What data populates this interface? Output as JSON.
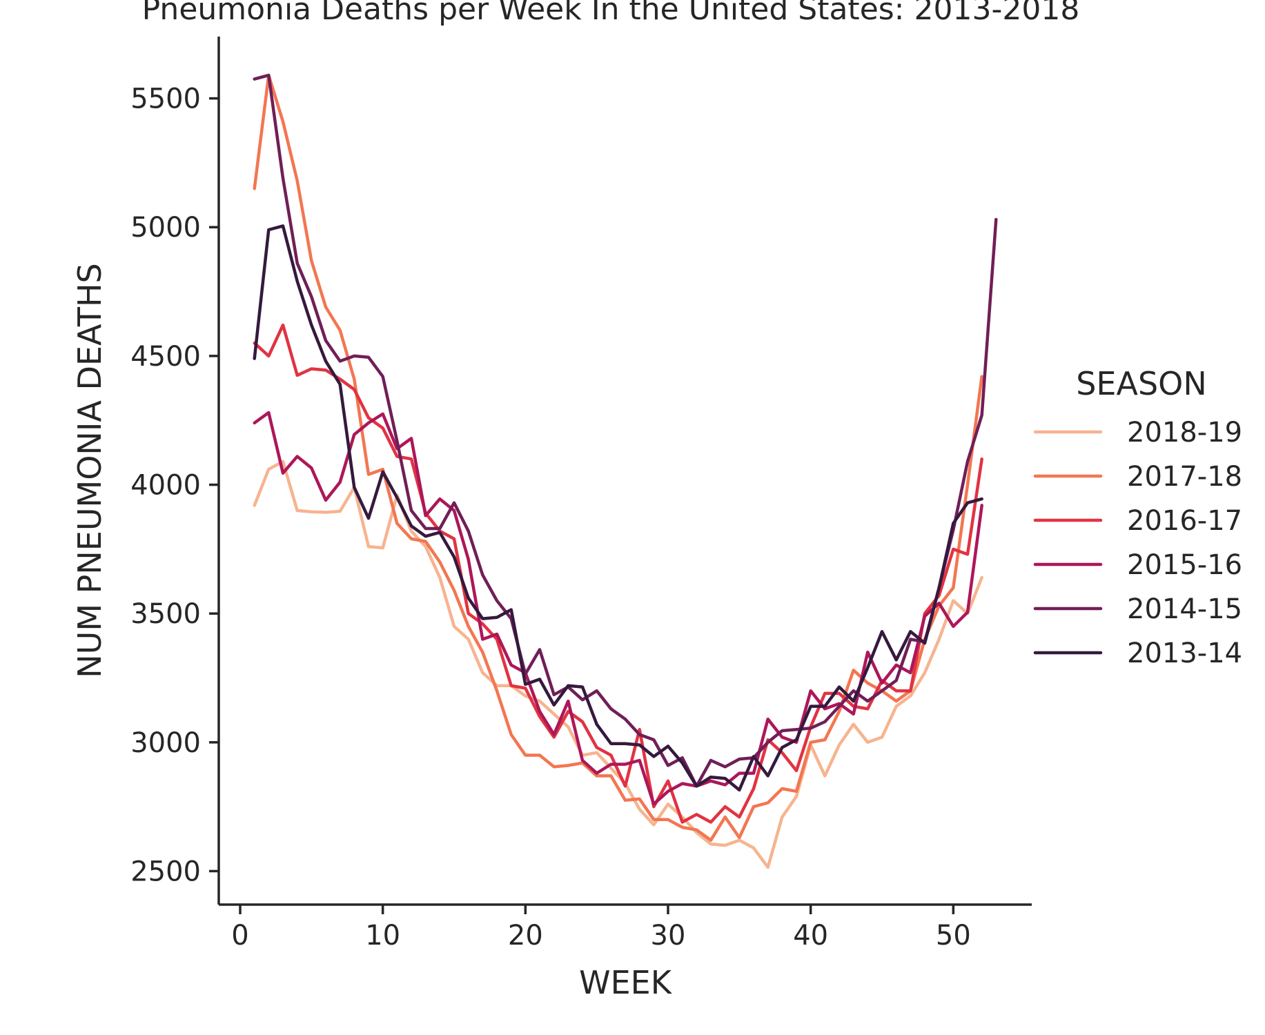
{
  "chart_data": {
    "type": "line",
    "title": "Pneumonia Deaths per Week In the United States: 2013-2018",
    "xlabel": "WEEK",
    "ylabel": "NUM PNEUMONIA DEATHS",
    "xlim": [
      -1.5,
      55.5
    ],
    "ylim": [
      2370,
      5740
    ],
    "xticks": [
      0,
      10,
      20,
      30,
      40,
      50
    ],
    "yticks": [
      2500,
      3000,
      3500,
      4000,
      4500,
      5000,
      5500
    ],
    "grid": false,
    "legend": {
      "title": "SEASON",
      "position": "right"
    },
    "series": [
      {
        "name": "2018-19",
        "color": "#f6b48f",
        "x": [
          1,
          2,
          3,
          4,
          5,
          6,
          7,
          8,
          9,
          10,
          11,
          12,
          13,
          14,
          15,
          16,
          17,
          18,
          19,
          20,
          21,
          22,
          23,
          24,
          25,
          26,
          27,
          28,
          29,
          30,
          31,
          32,
          33,
          34,
          35,
          36,
          37,
          38,
          39,
          40,
          41,
          42,
          43,
          44,
          45,
          46,
          47,
          48,
          49,
          50,
          51,
          52
        ],
        "y": [
          3920,
          4060,
          4090,
          3900,
          3895,
          3893,
          3897,
          3990,
          3760,
          3755,
          3960,
          3820,
          3760,
          3640,
          3450,
          3400,
          3270,
          3220,
          3220,
          3180,
          3160,
          3110,
          3060,
          2950,
          2960,
          2900,
          2840,
          2740,
          2680,
          2760,
          2710,
          2650,
          2605,
          2600,
          2620,
          2590,
          2515,
          2710,
          2790,
          2990,
          2870,
          2990,
          3070,
          3000,
          3020,
          3140,
          3180,
          3270,
          3400,
          3550,
          3500,
          3640
        ]
      },
      {
        "name": "2017-18",
        "color": "#f37651",
        "x": [
          1,
          2,
          3,
          4,
          5,
          6,
          7,
          8,
          9,
          10,
          11,
          12,
          13,
          14,
          15,
          16,
          17,
          18,
          19,
          20,
          21,
          22,
          23,
          24,
          25,
          26,
          27,
          28,
          29,
          30,
          31,
          32,
          33,
          34,
          35,
          36,
          37,
          38,
          39,
          40,
          41,
          42,
          43,
          44,
          45,
          46,
          47,
          48,
          49,
          50,
          51,
          52
        ],
        "y": [
          5150,
          5590,
          5410,
          5180,
          4870,
          4690,
          4600,
          4410,
          4040,
          4060,
          3850,
          3790,
          3780,
          3700,
          3590,
          3450,
          3350,
          3200,
          3030,
          2950,
          2950,
          2905,
          2910,
          2920,
          2870,
          2870,
          2775,
          2780,
          2700,
          2700,
          2670,
          2660,
          2620,
          2710,
          2630,
          2750,
          2765,
          2820,
          2810,
          3000,
          3010,
          3120,
          3280,
          3230,
          3200,
          3160,
          3200,
          3400,
          3530,
          3600,
          4000,
          4420
        ]
      },
      {
        "name": "2016-17",
        "color": "#e13342",
        "x": [
          1,
          2,
          3,
          4,
          5,
          6,
          7,
          8,
          9,
          10,
          11,
          12,
          13,
          14,
          15,
          16,
          17,
          18,
          19,
          20,
          21,
          22,
          23,
          24,
          25,
          26,
          27,
          28,
          29,
          30,
          31,
          32,
          33,
          34,
          35,
          36,
          37,
          38,
          39,
          40,
          41,
          42,
          43,
          44,
          45,
          46,
          47,
          48,
          49,
          50,
          51,
          52
        ],
        "y": [
          4550,
          4500,
          4620,
          4425,
          4450,
          4445,
          4410,
          4370,
          4260,
          4220,
          4110,
          4100,
          3890,
          3820,
          3790,
          3500,
          3460,
          3400,
          3220,
          3210,
          3100,
          3020,
          3120,
          3080,
          2980,
          2950,
          2830,
          3050,
          2750,
          2850,
          2690,
          2720,
          2690,
          2750,
          2710,
          2820,
          3010,
          2960,
          2890,
          3060,
          3190,
          3190,
          3140,
          3130,
          3240,
          3200,
          3200,
          3500,
          3570,
          3750,
          3730,
          4100
        ]
      },
      {
        "name": "2015-16",
        "color": "#ad1759",
        "x": [
          1,
          2,
          3,
          4,
          5,
          6,
          7,
          8,
          9,
          10,
          11,
          12,
          13,
          14,
          15,
          16,
          17,
          18,
          19,
          20,
          21,
          22,
          23,
          24,
          25,
          26,
          27,
          28,
          29,
          30,
          31,
          32,
          33,
          34,
          35,
          36,
          37,
          38,
          39,
          40,
          41,
          42,
          43,
          44,
          45,
          46,
          47,
          48,
          49,
          50,
          51,
          52
        ],
        "y": [
          4240,
          4280,
          4045,
          4110,
          4065,
          3940,
          4010,
          4195,
          4240,
          4275,
          4140,
          4180,
          3880,
          3945,
          3900,
          3710,
          3400,
          3420,
          3300,
          3270,
          3120,
          3030,
          3160,
          2930,
          2880,
          2915,
          2915,
          2930,
          2760,
          2810,
          2840,
          2830,
          2850,
          2835,
          2880,
          2880,
          3090,
          3020,
          3000,
          3200,
          3130,
          3150,
          3110,
          3350,
          3230,
          3300,
          3270,
          3490,
          3540,
          3450,
          3505,
          3920
        ]
      },
      {
        "name": "2014-15",
        "color": "#701f57",
        "x": [
          1,
          2,
          3,
          4,
          5,
          6,
          7,
          8,
          9,
          10,
          11,
          12,
          13,
          14,
          15,
          16,
          17,
          18,
          19,
          20,
          21,
          22,
          23,
          24,
          25,
          26,
          27,
          28,
          29,
          30,
          31,
          32,
          33,
          34,
          35,
          36,
          37,
          38,
          39,
          40,
          41,
          42,
          43,
          44,
          45,
          46,
          47,
          48,
          49,
          50,
          51,
          52,
          53
        ],
        "y": [
          5575,
          5590,
          5190,
          4860,
          4730,
          4560,
          4480,
          4500,
          4495,
          4420,
          4170,
          3900,
          3830,
          3830,
          3930,
          3820,
          3650,
          3550,
          3480,
          3265,
          3360,
          3185,
          3215,
          3165,
          3200,
          3130,
          3090,
          3030,
          3010,
          2910,
          2940,
          2830,
          2930,
          2905,
          2935,
          2940,
          3000,
          3045,
          3050,
          3055,
          3080,
          3140,
          3200,
          3160,
          3200,
          3240,
          3400,
          3390,
          3600,
          3825,
          4090,
          4270,
          5030
        ]
      },
      {
        "name": "2013-14",
        "color": "#35193e",
        "x": [
          1,
          2,
          3,
          4,
          5,
          6,
          7,
          8,
          9,
          10,
          11,
          12,
          13,
          14,
          15,
          16,
          17,
          18,
          19,
          20,
          21,
          22,
          23,
          24,
          25,
          26,
          27,
          28,
          29,
          30,
          31,
          32,
          33,
          34,
          35,
          36,
          37,
          38,
          39,
          40,
          41,
          42,
          43,
          44,
          45,
          46,
          47,
          48,
          49,
          50,
          51,
          52
        ],
        "y": [
          4490,
          4990,
          5005,
          4790,
          4620,
          4480,
          4390,
          3990,
          3870,
          4050,
          3950,
          3840,
          3800,
          3815,
          3720,
          3560,
          3480,
          3485,
          3515,
          3225,
          3245,
          3145,
          3220,
          3215,
          3070,
          2995,
          2995,
          2990,
          2945,
          2985,
          2920,
          2830,
          2865,
          2860,
          2815,
          2945,
          2870,
          2980,
          3010,
          3140,
          3140,
          3215,
          3160,
          3290,
          3430,
          3320,
          3430,
          3385,
          3600,
          3850,
          3930,
          3945
        ]
      }
    ]
  }
}
